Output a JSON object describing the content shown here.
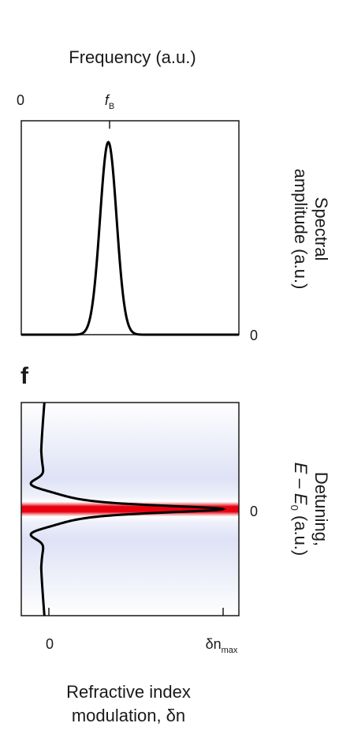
{
  "chart_data": [
    {
      "type": "line",
      "title": "",
      "xlabel": "Frequency (a.u.)",
      "ylabel": "Spectral amplitude (a.u.)",
      "x_ticks": [
        {
          "label": "0",
          "value": 0
        },
        {
          "label_main": "f",
          "label_sub": "B",
          "value": 0.4
        }
      ],
      "y_ticks": [
        {
          "label": "0",
          "value": 0
        }
      ],
      "xlim": [
        0,
        1
      ],
      "ylim": [
        0,
        1
      ],
      "series": [
        {
          "peak_center": 0.4,
          "peak_amplitude": 0.9,
          "peak_width": 0.038
        }
      ],
      "grid": false
    },
    {
      "type": "heatmap",
      "panel_label": "f",
      "xlabel": "Refractive index modulation, δn",
      "xlabel_lines": [
        "Refractive index",
        "modulation, δn"
      ],
      "ylabel": "Detuning, E – E0 (a.u.)",
      "ylabel_lines": [
        {
          "text": "Detuning,"
        },
        {
          "main": "E – E",
          "sub": "0",
          "tail": " (a.u.)"
        }
      ],
      "x_ticks": [
        {
          "label": "0",
          "value": 0
        },
        {
          "label_main": "δn",
          "label_sub": "max",
          "value": 1
        }
      ],
      "y_ticks": [
        {
          "label": "0",
          "value": 0
        }
      ],
      "xlim": [
        -0.15,
        1.07
      ],
      "ylim": [
        -1,
        1
      ],
      "band_center": 0,
      "band_color": "#e8000e",
      "sidelobe_color": "#c9ccf2",
      "series": [
        {
          "curve_min_x": 0.0,
          "curve_peak_x": 0.98,
          "peak_y": 0
        }
      ],
      "grid": false
    }
  ],
  "colors": {
    "axis": "#1a1a1a",
    "curve": "#000000",
    "band": "#e8000e",
    "background_blue": "#e3e5f7"
  }
}
